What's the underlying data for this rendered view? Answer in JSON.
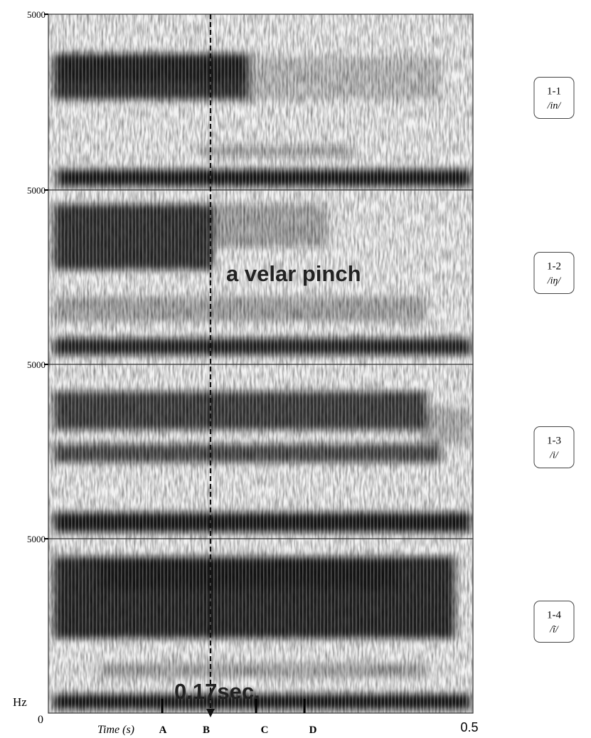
{
  "panels": [
    {
      "top_label": "5000",
      "label": "1-1",
      "phone": "/in/"
    },
    {
      "top_label": "5000",
      "label": "1-2",
      "phone": "/iŋ/"
    },
    {
      "top_label": "5000",
      "label": "1-3",
      "phone": "/i/"
    },
    {
      "top_label": "5000",
      "label": "1-4",
      "phone": "/ĩ/"
    }
  ],
  "y_unit": "Hz",
  "y_bottom_label": "0",
  "x_axis": {
    "title": "Time (s)",
    "end_label": "0.5",
    "markers": [
      "A",
      "B",
      "C",
      "D"
    ]
  },
  "annotations": {
    "pinch": "a velar pinch",
    "duration": "0.17sec."
  }
}
